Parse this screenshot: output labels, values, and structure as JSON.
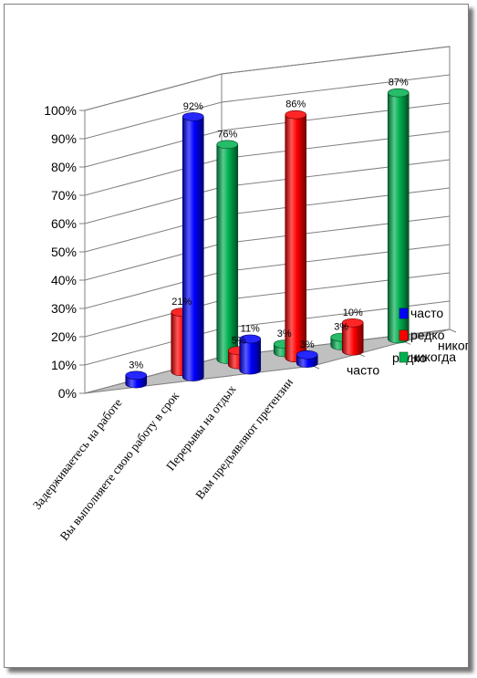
{
  "chart_data": {
    "type": "bar",
    "style": "3d-cylinder",
    "categories": [
      "Задерживаетесь на работе",
      "Вы выполняете свою работу в срок",
      "Перерывы на отдых",
      "Вам предъявляют претензии"
    ],
    "series": [
      {
        "name": "часто",
        "color": "#0000ff",
        "values": [
          3,
          92,
          11,
          3
        ],
        "labels": [
          "3%",
          "92%",
          "11%",
          "3%"
        ]
      },
      {
        "name": "редко",
        "color": "#ff0000",
        "values": [
          21,
          5,
          86,
          10
        ],
        "labels": [
          "21%",
          "5%",
          "86%",
          "10%"
        ]
      },
      {
        "name": "никогда",
        "color": "#00b050",
        "values": [
          76,
          3,
          3,
          87
        ],
        "labels": [
          "76%",
          "3%",
          "3%",
          "87%"
        ]
      }
    ],
    "y_ticks": [
      "0%",
      "10%",
      "20%",
      "30%",
      "40%",
      "50%",
      "60%",
      "70%",
      "80%",
      "90%",
      "100%"
    ],
    "ylim": [
      0,
      100
    ],
    "depth_labels": [
      "часто",
      "редко",
      "никогда"
    ],
    "legend_position": "right",
    "grid": true
  }
}
